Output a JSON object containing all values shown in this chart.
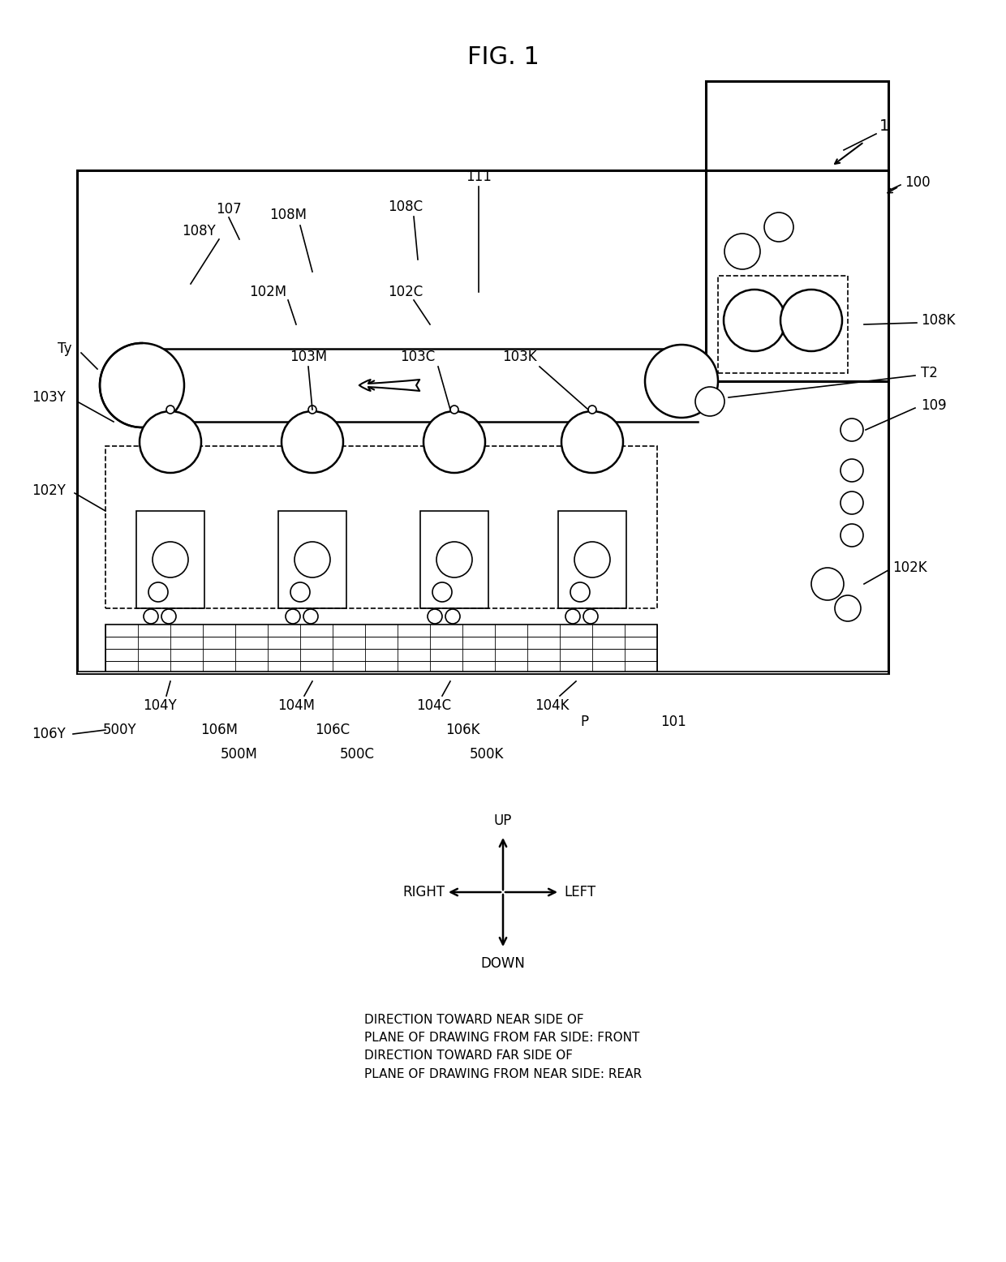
{
  "title": "FIG. 1",
  "bg_color": "#ffffff",
  "line_color": "#000000",
  "fig_label": "1",
  "direction_text": [
    "DIRECTION TOWARD NEAR SIDE OF",
    "PLANE OF DRAWING FROM FAR SIDE: FRONT",
    "DIRECTION TOWARD FAR SIDE OF",
    "PLANE OF DRAWING FROM NEAR SIDE: REAR"
  ]
}
